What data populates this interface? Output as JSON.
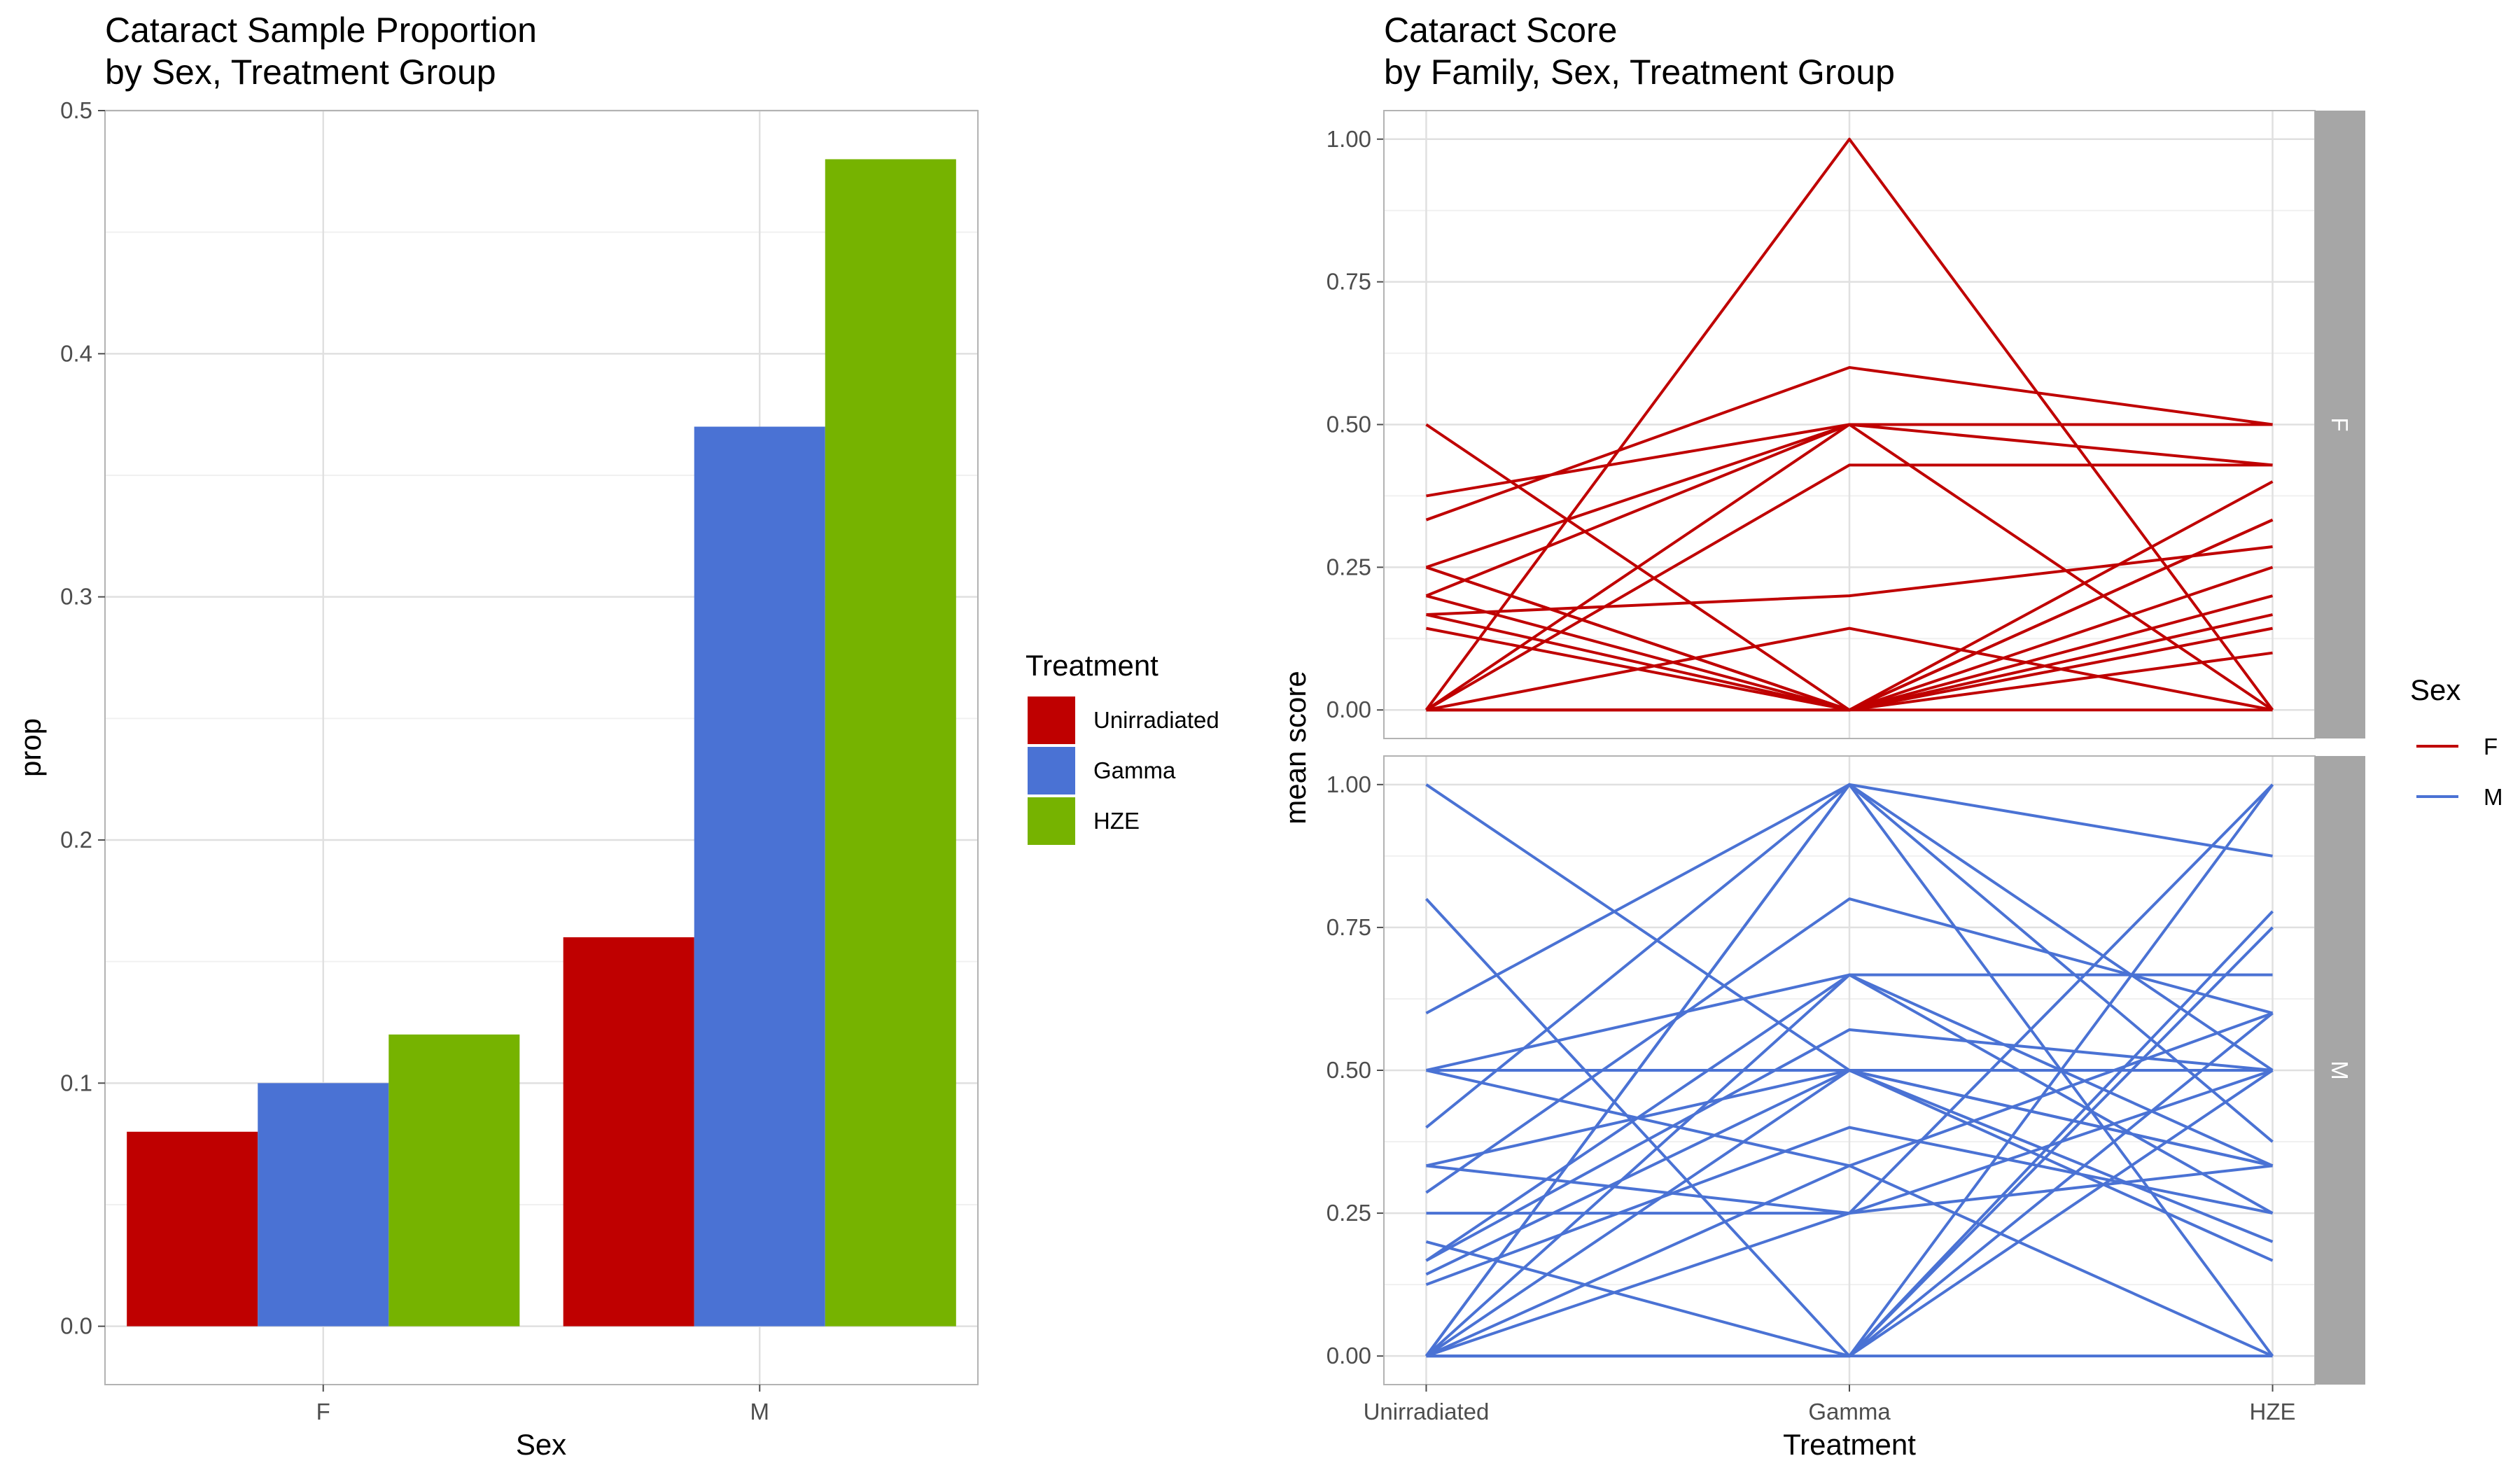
{
  "chart_data": [
    {
      "type": "bar",
      "title": "Cataract Sample Proportion",
      "subtitle": "by Sex, Treatment Group",
      "xlabel": "Sex",
      "ylabel": "prop",
      "categories": [
        "F",
        "M"
      ],
      "ylim": [
        -0.024,
        0.5
      ],
      "yticks": [
        "0.0",
        "0.1",
        "0.2",
        "0.3",
        "0.4",
        "0.5"
      ],
      "grid": true,
      "series": [
        {
          "name": "Unirradiated",
          "color": "#BF0000",
          "values": [
            0.08,
            0.16
          ]
        },
        {
          "name": "Gamma",
          "color": "#4A72D4",
          "values": [
            0.1,
            0.37
          ]
        },
        {
          "name": "HZE",
          "color": "#76B300",
          "values": [
            0.12,
            0.48
          ]
        }
      ],
      "legend": {
        "title": "Treatment",
        "position": "right"
      }
    },
    {
      "type": "line",
      "title": "Cataract Score",
      "subtitle": "by Family, Sex, Treatment Group",
      "xlabel": "Treatment",
      "ylabel": "mean score",
      "categories": [
        "Unirradiated",
        "Gamma",
        "HZE"
      ],
      "ylim": [
        -0.05,
        1.05
      ],
      "yticks": [
        "0.00",
        "0.25",
        "0.50",
        "0.75",
        "1.00"
      ],
      "grid": true,
      "legend": {
        "title": "Sex",
        "position": "right"
      },
      "panels": [
        {
          "label": "F",
          "color": "#BF0000",
          "series": [
            [
              0.5,
              0,
              0.333
            ],
            [
              0.375,
              0.5,
              0.5
            ],
            [
              0.333,
              0.6,
              0.5
            ],
            [
              0.25,
              0,
              0.4
            ],
            [
              0.25,
              0.5,
              0
            ],
            [
              0.2,
              0.5,
              0.429
            ],
            [
              0.167,
              0.2,
              0.286
            ],
            [
              0.167,
              0,
              0.25
            ],
            [
              0.143,
              0,
              0.2
            ],
            [
              0,
              1.0,
              0
            ],
            [
              0,
              0.5,
              0.5
            ],
            [
              0,
              0.429,
              0.429
            ],
            [
              0,
              0.143,
              0
            ],
            [
              0,
              0,
              0.167
            ],
            [
              0,
              0,
              0.1
            ],
            [
              0,
              0,
              0.333
            ],
            [
              0.2,
              0,
              0.143
            ],
            [
              0.25,
              0,
              0
            ]
          ]
        },
        {
          "label": "M",
          "color": "#4A72D4",
          "series": [
            [
              1.0,
              0.5,
              0.333
            ],
            [
              0.8,
              0,
              0.6
            ],
            [
              0.6,
              1.0,
              0.5
            ],
            [
              0.5,
              0.667,
              0.25
            ],
            [
              0.5,
              0.5,
              0.5
            ],
            [
              0.5,
              0.333,
              0
            ],
            [
              0.4,
              1.0,
              0.375
            ],
            [
              0.333,
              0.25,
              1.0
            ],
            [
              0.333,
              0.5,
              0.2
            ],
            [
              0.286,
              0.8,
              0.6
            ],
            [
              0.25,
              0.25,
              0.5
            ],
            [
              0.2,
              0,
              0.778
            ],
            [
              0.167,
              0.667,
              0.333
            ],
            [
              0.167,
              0.571,
              0.5
            ],
            [
              0.143,
              0.5,
              0.333
            ],
            [
              0.125,
              0.4,
              0.25
            ],
            [
              0,
              1.0,
              0
            ],
            [
              0,
              1.0,
              0.875
            ],
            [
              0,
              0.667,
              0.667
            ],
            [
              0,
              0.5,
              0.167
            ],
            [
              0,
              0.333,
              0.6
            ],
            [
              0,
              0,
              1.0
            ],
            [
              0,
              0,
              0.5
            ],
            [
              0,
              0,
              0.75
            ],
            [
              0,
              0.25,
              0.333
            ],
            [
              0,
              0,
              0
            ]
          ]
        }
      ]
    }
  ]
}
